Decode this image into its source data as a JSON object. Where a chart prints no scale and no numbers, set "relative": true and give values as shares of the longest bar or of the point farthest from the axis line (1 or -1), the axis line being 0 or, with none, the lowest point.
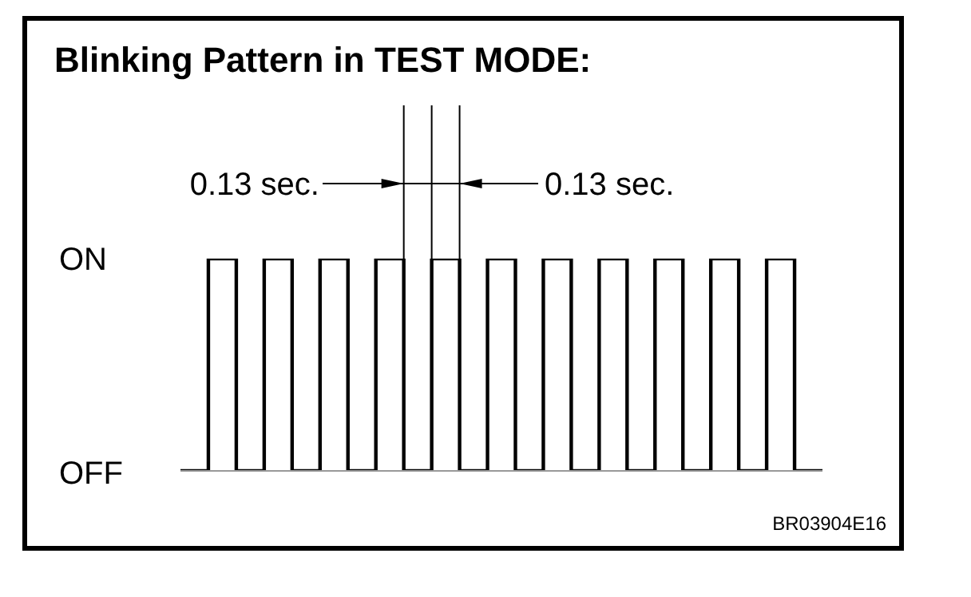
{
  "chart_data": {
    "type": "step",
    "title": "Blinking Pattern in TEST MODE:",
    "categories": [
      null,
      null,
      null,
      null,
      null,
      null,
      null,
      null,
      null,
      null,
      null,
      null,
      null,
      null,
      null,
      null,
      null,
      null,
      null,
      null,
      null,
      null,
      null,
      null
    ],
    "values": [
      0,
      1,
      0,
      1,
      0,
      1,
      0,
      1,
      0,
      1,
      0,
      1,
      0,
      1,
      0,
      1,
      0,
      1,
      0,
      1,
      0,
      1,
      0,
      0
    ],
    "color": "#000000",
    "relative": true,
    "marker": "none",
    "annotations": [
      "ON",
      "OFF",
      "0.13 sec.",
      "0.13 sec.",
      "BR03904E16"
    ]
  }
}
